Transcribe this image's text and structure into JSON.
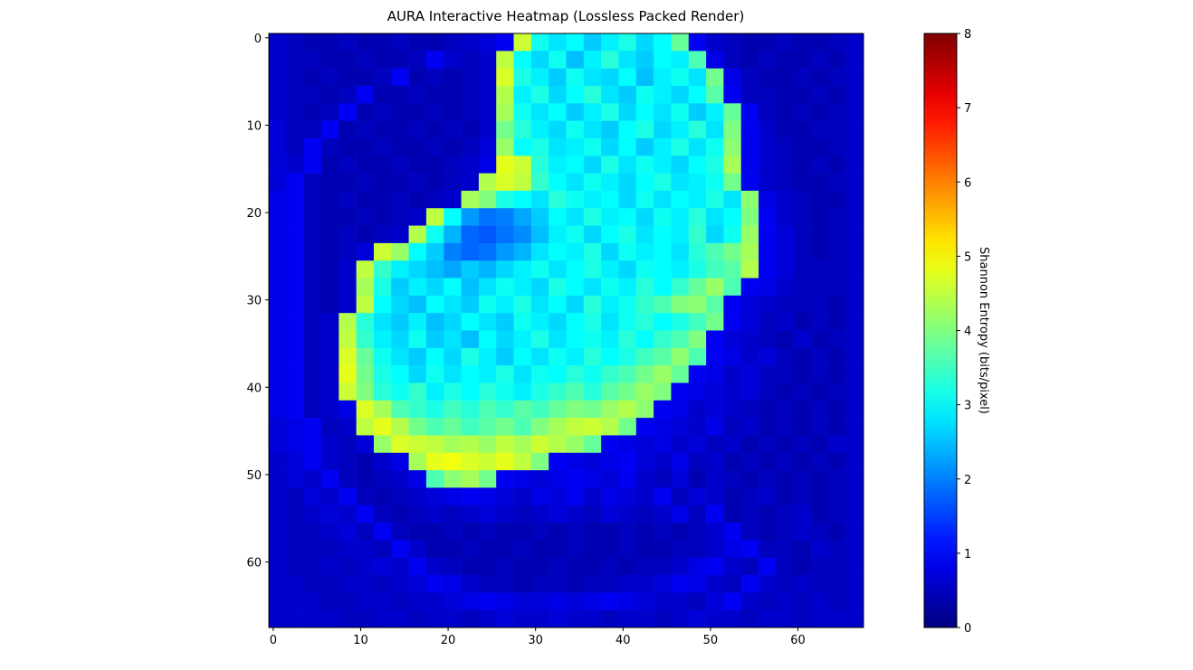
{
  "chart_data": {
    "type": "heatmap",
    "title": "AURA Interactive Heatmap (Lossless Packed Render)",
    "colormap": "jet",
    "xlim": [
      -0.5,
      67.5
    ],
    "ylim": [
      67.5,
      -0.5
    ],
    "xticks": [
      0,
      10,
      20,
      30,
      40,
      50,
      60
    ],
    "yticks": [
      0,
      10,
      20,
      30,
      40,
      50,
      60
    ],
    "colorbar": {
      "label": "Shannon Entropy (bits/pixel)",
      "lim": [
        0,
        8
      ],
      "ticks": [
        0,
        1,
        2,
        3,
        4,
        5,
        6,
        7,
        8
      ]
    },
    "values": [
      [
        0.6,
        0.5,
        0.4,
        0.4,
        0.5,
        0.4,
        0.4,
        0.5,
        0.4,
        0.4,
        0.5,
        0.6,
        0.7,
        0.9,
        4.6,
        3.1,
        2.8,
        3.0,
        2.6,
        2.9,
        3.2,
        2.7,
        3.0,
        3.8,
        0.9,
        0.6,
        0.5,
        0.4,
        0.4,
        0.5,
        0.4,
        0.4,
        0.5,
        0.6
      ],
      [
        0.6,
        0.5,
        0.5,
        0.4,
        0.4,
        0.5,
        0.4,
        0.4,
        0.5,
        0.9,
        0.6,
        0.5,
        0.6,
        4.5,
        3.0,
        2.7,
        3.1,
        2.5,
        2.9,
        3.3,
        2.8,
        2.6,
        3.0,
        2.9,
        3.6,
        0.8,
        0.5,
        0.4,
        0.5,
        0.4,
        0.4,
        0.5,
        0.4,
        0.6
      ],
      [
        0.6,
        0.5,
        0.4,
        0.5,
        0.4,
        0.4,
        0.5,
        0.9,
        0.4,
        0.5,
        0.4,
        0.5,
        0.6,
        4.7,
        3.2,
        2.9,
        2.6,
        3.1,
        2.8,
        2.7,
        3.0,
        2.5,
        2.9,
        3.1,
        2.8,
        3.9,
        0.8,
        0.5,
        0.4,
        0.4,
        0.5,
        0.4,
        0.5,
        0.6
      ],
      [
        0.6,
        0.5,
        0.5,
        0.4,
        0.5,
        0.9,
        0.4,
        0.4,
        0.5,
        0.4,
        0.4,
        0.5,
        0.6,
        4.4,
        2.9,
        3.2,
        2.7,
        3.0,
        3.3,
        2.8,
        2.6,
        3.1,
        2.9,
        2.7,
        3.0,
        3.7,
        0.9,
        0.5,
        0.5,
        0.4,
        0.4,
        0.5,
        0.4,
        0.6
      ],
      [
        0.6,
        0.5,
        0.4,
        0.5,
        0.9,
        0.4,
        0.5,
        0.4,
        0.4,
        0.5,
        0.4,
        0.5,
        0.6,
        4.3,
        3.1,
        2.8,
        3.0,
        2.6,
        2.9,
        3.2,
        2.7,
        3.0,
        2.8,
        3.1,
        2.6,
        2.9,
        3.8,
        0.9,
        0.5,
        0.4,
        0.5,
        0.4,
        0.5,
        0.6
      ],
      [
        0.7,
        0.5,
        0.5,
        0.9,
        0.4,
        0.5,
        0.4,
        0.4,
        0.5,
        0.4,
        0.5,
        0.4,
        0.6,
        3.9,
        3.3,
        2.9,
        2.7,
        3.1,
        2.8,
        2.6,
        3.0,
        3.2,
        2.7,
        2.9,
        3.3,
        2.8,
        4.0,
        0.9,
        0.6,
        0.4,
        0.4,
        0.5,
        0.5,
        0.6
      ],
      [
        0.7,
        0.5,
        0.9,
        0.5,
        0.4,
        0.4,
        0.5,
        0.4,
        0.4,
        0.5,
        0.4,
        0.5,
        0.7,
        4.2,
        3.0,
        3.2,
        2.8,
        2.9,
        3.1,
        2.7,
        3.0,
        2.6,
        2.9,
        3.2,
        2.8,
        3.1,
        4.1,
        0.9,
        0.6,
        0.5,
        0.4,
        0.4,
        0.5,
        0.6
      ],
      [
        0.7,
        0.6,
        0.9,
        0.4,
        0.5,
        0.4,
        0.4,
        0.5,
        0.4,
        0.4,
        0.5,
        0.6,
        0.8,
        4.8,
        4.6,
        3.3,
        2.9,
        3.0,
        2.7,
        3.2,
        2.8,
        3.1,
        2.9,
        2.7,
        3.0,
        3.2,
        4.3,
        0.9,
        0.6,
        0.5,
        0.4,
        0.5,
        0.4,
        0.6
      ],
      [
        0.7,
        0.9,
        0.5,
        0.4,
        0.4,
        0.5,
        0.4,
        0.4,
        0.5,
        0.4,
        0.5,
        0.6,
        4.4,
        4.7,
        4.5,
        3.4,
        3.0,
        2.8,
        3.1,
        2.9,
        2.7,
        3.0,
        3.2,
        2.8,
        2.9,
        3.1,
        3.9,
        0.9,
        0.6,
        0.5,
        0.4,
        0.4,
        0.5,
        0.6
      ],
      [
        0.8,
        0.9,
        0.5,
        0.4,
        0.5,
        0.4,
        0.4,
        0.5,
        0.4,
        0.5,
        0.6,
        4.3,
        4.0,
        3.2,
        3.0,
        2.8,
        3.3,
        3.1,
        2.9,
        3.0,
        2.7,
        3.1,
        2.8,
        3.0,
        2.9,
        3.2,
        2.8,
        4.1,
        0.8,
        0.6,
        0.5,
        0.4,
        0.4,
        0.6
      ],
      [
        0.8,
        0.9,
        0.5,
        0.4,
        0.4,
        0.5,
        0.4,
        0.5,
        0.6,
        4.5,
        3.0,
        2.2,
        1.9,
        2.0,
        2.3,
        2.6,
        3.0,
        2.8,
        3.2,
        2.9,
        3.0,
        2.7,
        3.1,
        2.9,
        3.3,
        2.8,
        3.0,
        4.0,
        0.9,
        0.6,
        0.5,
        0.4,
        0.5,
        0.6
      ],
      [
        0.8,
        0.9,
        0.5,
        0.4,
        0.5,
        0.4,
        0.5,
        0.6,
        4.4,
        3.1,
        2.4,
        1.8,
        1.7,
        1.9,
        2.1,
        2.5,
        2.9,
        3.1,
        2.7,
        3.0,
        3.2,
        2.8,
        3.0,
        2.9,
        3.4,
        2.7,
        3.1,
        4.2,
        0.9,
        0.7,
        0.5,
        0.4,
        0.5,
        0.6
      ],
      [
        0.8,
        0.9,
        0.5,
        0.4,
        0.5,
        0.7,
        4.6,
        4.2,
        3.0,
        2.6,
        2.0,
        1.8,
        1.9,
        2.2,
        2.4,
        2.8,
        3.0,
        2.9,
        3.2,
        2.7,
        3.1,
        2.9,
        3.0,
        2.8,
        3.3,
        3.6,
        3.9,
        4.3,
        0.9,
        0.7,
        0.5,
        0.4,
        0.5,
        0.6
      ],
      [
        0.8,
        0.9,
        0.5,
        0.4,
        0.6,
        4.5,
        3.4,
        2.9,
        2.7,
        2.5,
        2.3,
        2.6,
        2.4,
        2.7,
        2.9,
        3.1,
        2.8,
        3.0,
        3.2,
        2.9,
        2.7,
        3.1,
        3.0,
        2.9,
        3.2,
        3.5,
        3.7,
        4.4,
        0.9,
        0.7,
        0.5,
        0.5,
        0.5,
        0.6
      ],
      [
        0.8,
        0.9,
        0.5,
        0.4,
        0.6,
        4.3,
        3.2,
        2.6,
        2.9,
        2.7,
        3.0,
        2.5,
        2.8,
        3.1,
        2.9,
        2.7,
        3.2,
        3.0,
        2.8,
        3.1,
        2.9,
        3.3,
        3.0,
        3.4,
        3.8,
        4.2,
        3.6,
        0.9,
        0.8,
        0.6,
        0.5,
        0.5,
        0.5,
        0.6
      ],
      [
        0.8,
        0.9,
        0.5,
        0.4,
        0.6,
        4.5,
        3.0,
        2.7,
        2.5,
        3.0,
        2.8,
        2.6,
        3.1,
        2.9,
        3.2,
        2.8,
        3.0,
        2.7,
        3.3,
        2.9,
        3.1,
        3.4,
        3.6,
        4.0,
        4.1,
        3.7,
        0.9,
        0.7,
        0.6,
        0.5,
        0.5,
        0.5,
        0.4,
        0.6
      ],
      [
        0.8,
        0.9,
        0.5,
        0.6,
        4.4,
        3.3,
        2.8,
        2.6,
        2.9,
        2.5,
        2.7,
        3.0,
        2.8,
        2.6,
        3.1,
        2.9,
        2.7,
        3.0,
        3.2,
        2.8,
        3.1,
        3.3,
        3.0,
        3.2,
        3.5,
        3.9,
        0.9,
        0.7,
        0.5,
        0.6,
        0.4,
        0.5,
        0.4,
        0.6
      ],
      [
        0.8,
        0.9,
        0.5,
        0.6,
        4.5,
        3.4,
        2.9,
        2.7,
        3.1,
        2.6,
        2.8,
        2.5,
        3.0,
        2.7,
        2.9,
        3.2,
        2.8,
        3.0,
        3.1,
        2.9,
        3.3,
        3.0,
        3.4,
        3.6,
        4.0,
        0.9,
        0.7,
        0.6,
        0.5,
        0.4,
        0.6,
        0.4,
        0.5,
        0.6
      ],
      [
        0.8,
        0.9,
        0.5,
        0.6,
        4.7,
        3.8,
        3.1,
        2.8,
        2.6,
        3.0,
        2.7,
        3.2,
        2.9,
        2.6,
        3.0,
        2.8,
        3.1,
        2.9,
        3.3,
        3.0,
        3.2,
        3.5,
        3.7,
        4.1,
        3.6,
        0.9,
        0.8,
        0.6,
        0.7,
        0.5,
        0.4,
        0.5,
        0.4,
        0.6
      ],
      [
        0.8,
        0.9,
        0.5,
        0.6,
        4.8,
        3.9,
        3.2,
        3.0,
        2.7,
        3.1,
        2.8,
        3.0,
        2.9,
        3.2,
        2.8,
        3.1,
        3.0,
        3.3,
        3.1,
        3.4,
        3.6,
        3.9,
        4.2,
        3.8,
        0.9,
        0.8,
        0.6,
        0.7,
        0.5,
        0.5,
        0.4,
        0.5,
        0.4,
        0.6
      ],
      [
        0.8,
        0.9,
        0.5,
        0.6,
        4.6,
        4.0,
        3.3,
        3.1,
        3.4,
        2.9,
        3.2,
        3.0,
        3.3,
        3.1,
        2.9,
        3.2,
        3.4,
        3.6,
        3.3,
        3.7,
        3.9,
        4.2,
        4.0,
        0.9,
        0.8,
        0.7,
        0.6,
        0.7,
        0.5,
        0.4,
        0.5,
        0.4,
        0.5,
        0.6
      ],
      [
        0.8,
        0.9,
        0.5,
        0.6,
        0.8,
        4.7,
        4.3,
        3.6,
        3.4,
        3.2,
        3.5,
        3.3,
        3.6,
        3.4,
        3.7,
        3.5,
        3.8,
        4.0,
        3.9,
        4.2,
        4.4,
        4.1,
        0.9,
        0.8,
        0.6,
        0.7,
        0.6,
        0.5,
        0.4,
        0.5,
        0.4,
        0.5,
        0.4,
        0.6
      ],
      [
        0.7,
        0.8,
        0.9,
        0.5,
        0.6,
        4.5,
        4.8,
        4.4,
        3.9,
        3.6,
        3.8,
        3.5,
        3.7,
        3.9,
        3.6,
        4.0,
        4.3,
        4.5,
        4.6,
        4.4,
        3.9,
        0.9,
        0.8,
        0.7,
        0.6,
        0.8,
        0.5,
        0.6,
        0.4,
        0.5,
        0.4,
        0.5,
        0.4,
        0.6
      ],
      [
        0.7,
        0.8,
        0.9,
        0.6,
        0.5,
        0.7,
        4.2,
        4.7,
        4.6,
        4.5,
        4.3,
        4.4,
        4.2,
        4.5,
        4.3,
        4.6,
        4.4,
        4.2,
        3.8,
        0.9,
        0.8,
        0.7,
        0.8,
        0.6,
        0.7,
        0.5,
        0.6,
        0.4,
        0.5,
        0.4,
        0.5,
        0.4,
        0.6,
        0.6
      ],
      [
        0.6,
        0.7,
        0.9,
        0.6,
        0.5,
        0.4,
        0.6,
        0.8,
        4.3,
        4.8,
        4.9,
        4.7,
        4.6,
        4.8,
        4.5,
        4.0,
        0.9,
        0.8,
        0.7,
        0.8,
        0.9,
        0.7,
        0.6,
        0.8,
        0.5,
        0.6,
        0.4,
        0.5,
        0.4,
        0.5,
        0.4,
        0.5,
        0.4,
        0.6
      ],
      [
        0.6,
        0.7,
        0.6,
        0.9,
        0.5,
        0.4,
        0.5,
        0.6,
        0.8,
        3.6,
        4.1,
        4.3,
        3.9,
        0.9,
        0.8,
        0.7,
        0.8,
        0.9,
        0.8,
        0.7,
        0.9,
        0.6,
        0.5,
        0.7,
        0.4,
        0.6,
        0.5,
        0.4,
        0.5,
        0.4,
        0.5,
        0.4,
        0.5,
        0.6
      ],
      [
        0.6,
        0.5,
        0.7,
        0.6,
        0.9,
        0.5,
        0.4,
        0.5,
        0.6,
        0.7,
        0.8,
        0.9,
        0.8,
        0.7,
        0.6,
        0.8,
        0.7,
        0.9,
        0.6,
        0.8,
        0.7,
        0.6,
        0.9,
        0.5,
        0.7,
        0.6,
        0.4,
        0.5,
        0.6,
        0.4,
        0.5,
        0.4,
        0.5,
        0.6
      ],
      [
        0.6,
        0.5,
        0.6,
        0.7,
        0.6,
        0.9,
        0.5,
        0.4,
        0.5,
        0.6,
        0.5,
        0.6,
        0.7,
        0.6,
        0.5,
        0.6,
        0.7,
        0.6,
        0.5,
        0.7,
        0.6,
        0.5,
        0.6,
        0.8,
        0.5,
        0.9,
        0.4,
        0.5,
        0.4,
        0.5,
        0.6,
        0.4,
        0.5,
        0.6
      ],
      [
        0.6,
        0.5,
        0.5,
        0.6,
        0.7,
        0.5,
        0.9,
        0.5,
        0.4,
        0.4,
        0.5,
        0.4,
        0.5,
        0.4,
        0.4,
        0.5,
        0.4,
        0.5,
        0.4,
        0.4,
        0.5,
        0.4,
        0.5,
        0.4,
        0.5,
        0.6,
        0.9,
        0.5,
        0.4,
        0.5,
        0.6,
        0.5,
        0.4,
        0.6
      ],
      [
        0.6,
        0.5,
        0.5,
        0.5,
        0.6,
        0.6,
        0.5,
        0.9,
        0.6,
        0.4,
        0.4,
        0.5,
        0.4,
        0.4,
        0.5,
        0.4,
        0.4,
        0.5,
        0.4,
        0.4,
        0.5,
        0.4,
        0.4,
        0.5,
        0.5,
        0.6,
        0.8,
        0.9,
        0.5,
        0.5,
        0.4,
        0.6,
        0.5,
        0.6
      ],
      [
        0.6,
        0.5,
        0.5,
        0.6,
        0.5,
        0.6,
        0.7,
        0.6,
        0.9,
        0.6,
        0.5,
        0.4,
        0.4,
        0.5,
        0.4,
        0.4,
        0.5,
        0.4,
        0.4,
        0.5,
        0.4,
        0.5,
        0.5,
        0.6,
        0.8,
        0.9,
        0.6,
        0.5,
        0.9,
        0.5,
        0.4,
        0.5,
        0.5,
        0.6
      ],
      [
        0.6,
        0.6,
        0.5,
        0.5,
        0.6,
        0.6,
        0.5,
        0.6,
        0.7,
        0.9,
        0.8,
        0.6,
        0.5,
        0.5,
        0.4,
        0.5,
        0.5,
        0.4,
        0.5,
        0.5,
        0.6,
        0.6,
        0.7,
        0.9,
        0.8,
        0.6,
        0.5,
        0.9,
        0.6,
        0.5,
        0.6,
        0.5,
        0.5,
        0.6
      ],
      [
        0.6,
        0.6,
        0.6,
        0.5,
        0.5,
        0.6,
        0.6,
        0.5,
        0.6,
        0.6,
        0.7,
        0.8,
        0.9,
        0.8,
        0.7,
        0.7,
        0.8,
        0.7,
        0.8,
        0.9,
        0.8,
        0.7,
        0.6,
        0.6,
        0.5,
        0.7,
        0.9,
        0.6,
        0.5,
        0.6,
        0.5,
        0.6,
        0.5,
        0.6
      ],
      [
        0.6,
        0.6,
        0.6,
        0.6,
        0.5,
        0.5,
        0.6,
        0.6,
        0.5,
        0.6,
        0.6,
        0.5,
        0.6,
        0.7,
        0.6,
        0.6,
        0.7,
        0.6,
        0.6,
        0.5,
        0.6,
        0.6,
        0.5,
        0.6,
        0.7,
        0.6,
        0.6,
        0.5,
        0.6,
        0.6,
        0.5,
        0.6,
        0.6,
        0.6
      ]
    ]
  }
}
